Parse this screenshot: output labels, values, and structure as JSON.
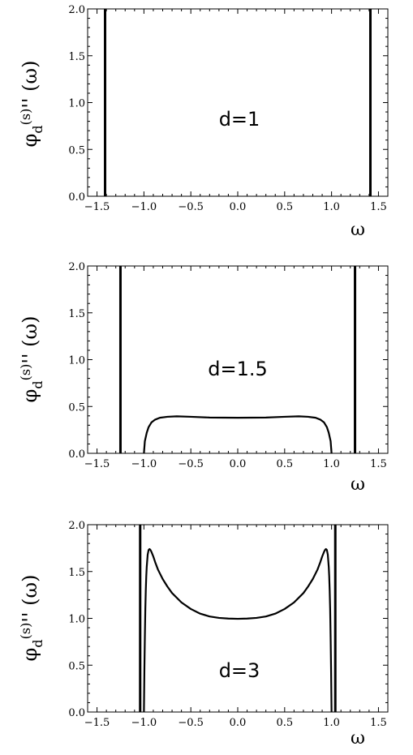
{
  "chart_data": [
    {
      "type": "line",
      "title": "",
      "xlabel": "ω",
      "ylabel": "φ_d^(s)'' (ω)",
      "xlim": [
        -1.6,
        1.6
      ],
      "ylim": [
        0,
        2
      ],
      "x_ticks": [
        "−1.5",
        "−1.0",
        "−0.5",
        "0.0",
        "0.5",
        "1.0",
        "1.5"
      ],
      "y_ticks": [
        "0.0",
        "0.5",
        "1.0",
        "1.5",
        "2.0"
      ],
      "annotation": "d=1",
      "delta_lines": [
        -1.414,
        1.414
      ],
      "series": []
    },
    {
      "type": "line",
      "title": "",
      "xlabel": "ω",
      "ylabel": "φ_d^(s)'' (ω)",
      "xlim": [
        -1.6,
        1.6
      ],
      "ylim": [
        0,
        2
      ],
      "x_ticks": [
        "−1.5",
        "−1.0",
        "−0.5",
        "0.0",
        "0.5",
        "1.0",
        "1.5"
      ],
      "y_ticks": [
        "0.0",
        "0.5",
        "1.0",
        "1.5",
        "2.0"
      ],
      "annotation": "d=1.5",
      "delta_lines": [
        -1.25,
        1.25
      ],
      "series": [
        {
          "x": [
            -1.0,
            -0.99,
            -0.97,
            -0.95,
            -0.92,
            -0.88,
            -0.83,
            -0.75,
            -0.65,
            -0.5,
            -0.3,
            0.0,
            0.3,
            0.5,
            0.65,
            0.75,
            0.83,
            0.88,
            0.92,
            0.95,
            0.97,
            0.99,
            1.0
          ],
          "y": [
            0.0,
            0.13,
            0.22,
            0.28,
            0.33,
            0.36,
            0.38,
            0.39,
            0.395,
            0.39,
            0.382,
            0.38,
            0.382,
            0.39,
            0.395,
            0.39,
            0.38,
            0.36,
            0.33,
            0.28,
            0.22,
            0.13,
            0.0
          ]
        }
      ]
    },
    {
      "type": "line",
      "title": "",
      "xlabel": "ω",
      "ylabel": "φ_d^(s)'' (ω)",
      "xlim": [
        -1.6,
        1.6
      ],
      "ylim": [
        0,
        2
      ],
      "x_ticks": [
        "−1.5",
        "−1.0",
        "−0.5",
        "0.0",
        "0.5",
        "1.0",
        "1.5"
      ],
      "y_ticks": [
        "0.0",
        "0.5",
        "1.0",
        "1.5",
        "2.0"
      ],
      "annotation": "d=3",
      "delta_lines": [
        -1.04,
        1.04
      ],
      "series": [
        {
          "x": [
            -1.0,
            -0.995,
            -0.99,
            -0.985,
            -0.98,
            -0.975,
            -0.97,
            -0.96,
            -0.95,
            -0.94,
            -0.93,
            -0.92,
            -0.9,
            -0.88,
            -0.85,
            -0.8,
            -0.75,
            -0.7,
            -0.6,
            -0.5,
            -0.4,
            -0.3,
            -0.2,
            -0.1,
            0.0,
            0.1,
            0.2,
            0.3,
            0.4,
            0.5,
            0.6,
            0.7,
            0.75,
            0.8,
            0.85,
            0.88,
            0.9,
            0.92,
            0.93,
            0.94,
            0.95,
            0.96,
            0.97,
            0.975,
            0.98,
            0.985,
            0.99,
            0.995,
            1.0
          ],
          "y": [
            0.0,
            0.45,
            0.8,
            1.1,
            1.3,
            1.45,
            1.55,
            1.68,
            1.73,
            1.74,
            1.73,
            1.71,
            1.66,
            1.6,
            1.52,
            1.42,
            1.34,
            1.27,
            1.17,
            1.1,
            1.05,
            1.02,
            1.005,
            0.998,
            0.995,
            0.998,
            1.005,
            1.02,
            1.05,
            1.1,
            1.17,
            1.27,
            1.34,
            1.42,
            1.52,
            1.6,
            1.66,
            1.71,
            1.73,
            1.74,
            1.73,
            1.68,
            1.55,
            1.45,
            1.3,
            1.1,
            0.8,
            0.45,
            0.0
          ]
        }
      ]
    }
  ]
}
